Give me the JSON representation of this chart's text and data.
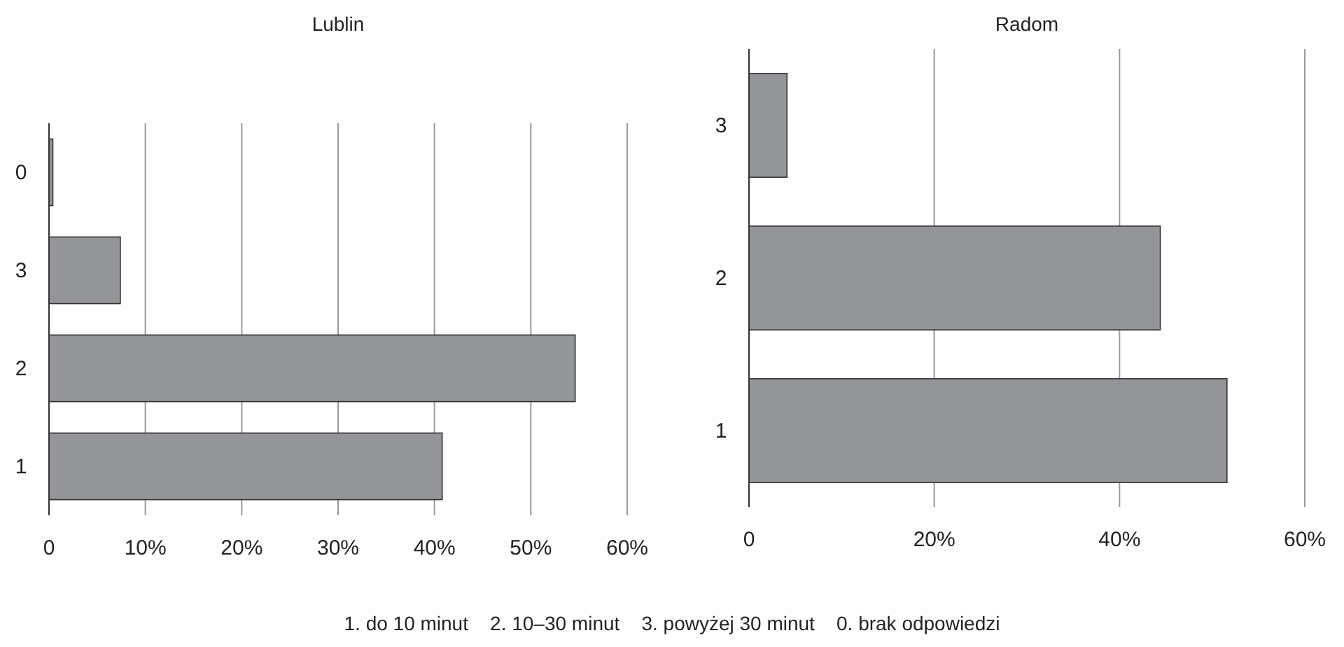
{
  "chart_data": [
    {
      "type": "bar",
      "title": "Lublin",
      "orientation": "horizontal",
      "categories": [
        "0",
        "3",
        "2",
        "1"
      ],
      "values": [
        0.4,
        7.4,
        54.6,
        40.8
      ],
      "color": "#939598",
      "xlim": [
        0,
        60
      ],
      "xticks": [
        0,
        {
          "value": 10,
          "label": "10%"
        },
        {
          "value": 20,
          "label": "20%"
        },
        {
          "value": 30,
          "label": "30%"
        },
        {
          "value": 40,
          "label": "40%"
        },
        {
          "value": 50,
          "label": "50%"
        },
        {
          "value": 60,
          "label": "60%"
        }
      ],
      "grid": "x",
      "annotations": [
        "1. do 10 minut    2. 10–30 minut    3. powyżej 30 minut    0. brak odpowiedzi"
      ]
    },
    {
      "type": "bar",
      "title": "Radom",
      "orientation": "horizontal",
      "categories": [
        "3",
        "2",
        "1"
      ],
      "values": [
        4.1,
        44.4,
        51.6
      ],
      "color": "#939598",
      "xlim": [
        0,
        60
      ],
      "xticks": [
        0,
        {
          "value": 20,
          "label": "20%"
        },
        {
          "value": 40,
          "label": "40%"
        },
        {
          "value": 60,
          "label": "60%"
        }
      ],
      "grid": "x"
    }
  ]
}
